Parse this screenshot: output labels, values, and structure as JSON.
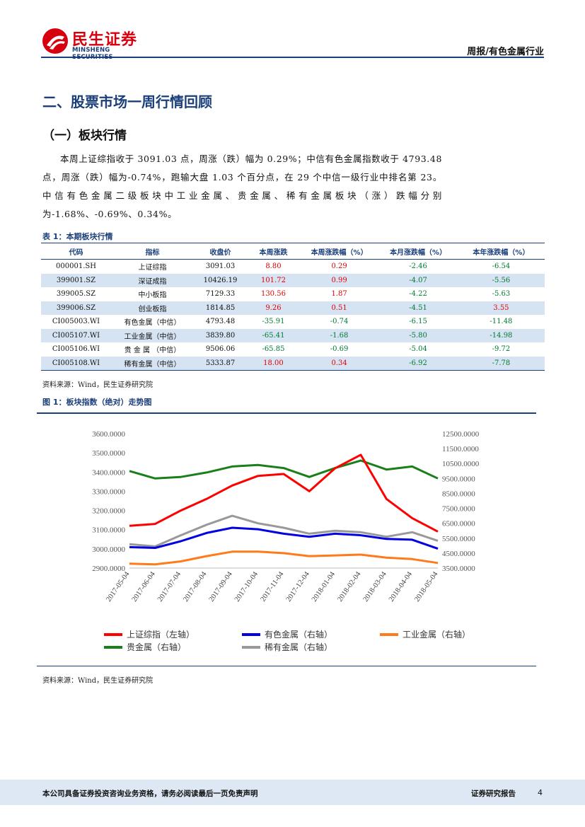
{
  "header": {
    "logo_cn": "民生证券",
    "logo_en": "MINSHENG SECURITIES",
    "right_title": "周报/有色金属行业"
  },
  "section_title": "二、股票市场一周行情回顾",
  "sub_title": "（一）板块行情",
  "paragraph": "本周上证综指收于 3091.03 点，周涨（跌）幅为 0.29%；中信有色金属指数收于 4793.48 点，周涨（跌）幅为-0.74%，跑输大盘 1.03 个百分点，在 29 个中信一级行业中排名第 23。中信有色金属二级板块中工业金属、贵金属、稀有金属板块（涨）跌幅分别为-1.68%、-0.69%、0.34%。",
  "table": {
    "caption": "表 1：本期板块行情",
    "headers": [
      "代码",
      "指标",
      "收盘价",
      "本周涨跌",
      "本周涨跌幅（%）",
      "本月涨跌幅（%）",
      "本年涨跌幅（%）"
    ],
    "rows": [
      [
        "000001.SH",
        "上证综指",
        "3091.03",
        "8.80",
        "0.29",
        "-2.46",
        "-6.54"
      ],
      [
        "399001.SZ",
        "深证成指",
        "10426.19",
        "101.72",
        "0.99",
        "-4.07",
        "-5.56"
      ],
      [
        "399005.SZ",
        "中小板指",
        "7129.33",
        "130.56",
        "1.87",
        "-4.22",
        "-5.63"
      ],
      [
        "399006.SZ",
        "创业板指",
        "1814.85",
        "9.26",
        "0.51",
        "-4.51",
        "3.55"
      ],
      [
        "CI005003.WI",
        "有色金属（中信）",
        "4793.48",
        "-35.91",
        "-0.74",
        "-6.15",
        "-11.48"
      ],
      [
        "CI005107.WI",
        "工业金属（中信）",
        "3839.80",
        "-65.41",
        "-1.68",
        "-5.80",
        "-14.98"
      ],
      [
        "CI005106.WI",
        "贵 金 属 （中信）",
        "9506.06",
        "-65.85",
        "-0.69",
        "-5.04",
        "-9.72"
      ],
      [
        "CI005108.WI",
        "稀有金属（中信）",
        "5333.87",
        "18.00",
        "0.34",
        "-6.92",
        "-7.78"
      ]
    ],
    "source": "资料来源：Wind，民生证券研究院"
  },
  "figure": {
    "caption": "图 1：板块指数（绝对）走势图",
    "source": "资料来源：Wind，民生证券研究院"
  },
  "colors": {
    "brand_blue": "#1a3f7a",
    "brand_red": "#d7000f",
    "up": "#e00000",
    "down": "#007a33"
  },
  "chart_data": {
    "type": "line",
    "title": "",
    "x": [
      "2017-05-04",
      "2017-06-04",
      "2017-07-04",
      "2017-08-04",
      "2017-09-04",
      "2017-10-04",
      "2017-11-04",
      "2017-12-04",
      "2018-01-04",
      "2018-02-04",
      "2018-03-04",
      "2018-04-04",
      "2018-05-04"
    ],
    "y_left": {
      "ticks": [
        "2900.0000",
        "3000.0000",
        "3100.0000",
        "3200.0000",
        "3300.0000",
        "3400.0000",
        "3500.0000",
        "3600.0000"
      ],
      "range": [
        2900,
        3600
      ]
    },
    "y_right": {
      "ticks": [
        "3500.0000",
        "4500.0000",
        "5500.0000",
        "6500.0000",
        "7500.0000",
        "8500.0000",
        "9500.0000",
        "10500.0000",
        "11500.0000",
        "12500.0000"
      ],
      "range": [
        3500,
        12500
      ]
    },
    "series": [
      {
        "name": "上证综指（左轴）",
        "axis": "left",
        "color": "#ff0000",
        "values": [
          3120,
          3130,
          3200,
          3260,
          3330,
          3380,
          3390,
          3300,
          3420,
          3490,
          3260,
          3160,
          3090
        ]
      },
      {
        "name": "有色金属（右轴）",
        "axis": "right",
        "color": "#0000e0",
        "values": [
          4900,
          4850,
          5300,
          5850,
          6200,
          6100,
          5800,
          5600,
          5800,
          5700,
          5450,
          5400,
          4800
        ]
      },
      {
        "name": "工业金属（右轴）",
        "axis": "right",
        "color": "#ff7a1a",
        "values": [
          3800,
          3750,
          3950,
          4300,
          4600,
          4600,
          4500,
          4300,
          4350,
          4400,
          4200,
          4100,
          3840
        ]
      },
      {
        "name": "贵金属（右轴）",
        "axis": "right",
        "color": "#1a7f1a",
        "values": [
          10000,
          9500,
          9600,
          9900,
          10300,
          10400,
          10200,
          9600,
          10200,
          10700,
          10100,
          10300,
          9500
        ]
      },
      {
        "name": "稀有金属（右轴）",
        "axis": "right",
        "color": "#999999",
        "values": [
          5100,
          4950,
          5700,
          6400,
          7000,
          6500,
          6200,
          5800,
          6000,
          5900,
          5600,
          5900,
          5330
        ]
      }
    ],
    "legend_position": "bottom",
    "grid": false
  },
  "footer": {
    "left": "本公司具备证券投资咨询业务资格，请务必阅读最后一页免责声明",
    "right": "证券研究报告",
    "page": "4"
  }
}
